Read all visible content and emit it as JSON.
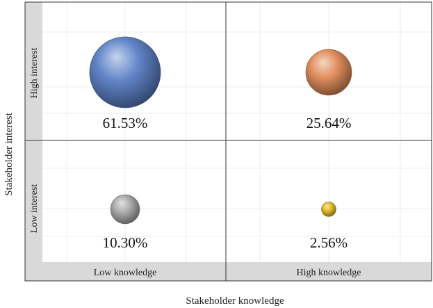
{
  "chart_data": {
    "type": "scatter",
    "x_title": "Stakeholder knowledge",
    "y_title": "Stakeholder interest",
    "x_categories": [
      "Low knowledge",
      "High knowledge"
    ],
    "y_categories": [
      "High interest",
      "Low interest"
    ],
    "points": [
      {
        "x": "Low knowledge",
        "y": "High interest",
        "value": 61.53,
        "label": "61.53%",
        "color": "#5b80c6"
      },
      {
        "x": "High knowledge",
        "y": "High interest",
        "value": 25.64,
        "label": "25.64%",
        "color": "#e08a58"
      },
      {
        "x": "Low knowledge",
        "y": "Low interest",
        "value": 10.3,
        "label": "10.30%",
        "color": "#a8a8a8"
      },
      {
        "x": "High knowledge",
        "y": "Low interest",
        "value": 2.56,
        "label": "2.56%",
        "color": "#e0b820"
      }
    ],
    "grid": true,
    "legend": "none"
  }
}
